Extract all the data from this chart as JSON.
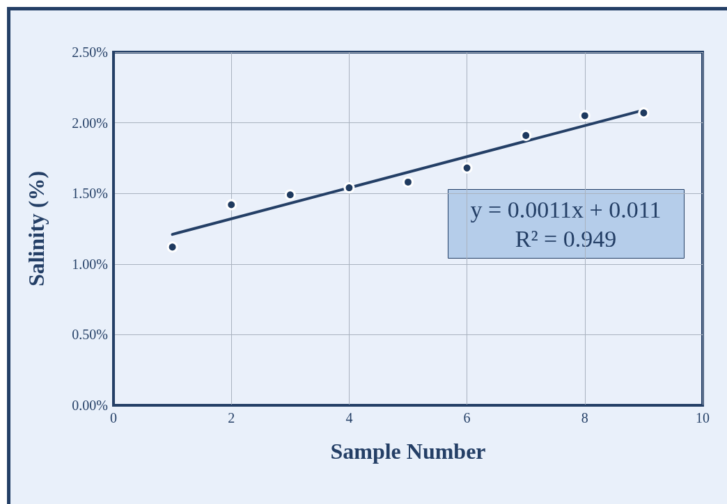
{
  "chart_data": {
    "type": "scatter",
    "xlabel": "Sample Number",
    "ylabel": "Salinity (%)",
    "x": [
      1,
      2,
      3,
      4,
      5,
      6,
      7,
      8,
      9
    ],
    "series": [
      {
        "color": "#1f3a5f",
        "values": [
          0.0112,
          0.0142,
          0.0149,
          0.0154,
          0.0158,
          0.0168,
          0.0191,
          0.0205,
          0.0207
        ]
      },
      {
        "type": "line",
        "color": "#243f66",
        "x": [
          1,
          9
        ],
        "values": [
          0.0121,
          0.0209
        ],
        "marker": "none",
        "line_style": "solid"
      }
    ],
    "xlim": [
      0,
      10
    ],
    "xticks": [
      0,
      2,
      4,
      6,
      8,
      10
    ],
    "ylim": [
      0,
      0.025
    ],
    "yticks": [
      {
        "value": 0,
        "label": "0.00%"
      },
      {
        "value": 0.005,
        "label": "0.50%"
      },
      {
        "value": 0.01,
        "label": "1.00%"
      },
      {
        "value": 0.015,
        "label": "1.50%"
      },
      {
        "value": 0.02,
        "label": "2.00%"
      },
      {
        "value": 0.025,
        "label": "2.50%"
      }
    ],
    "grid": true,
    "marker": "circle",
    "annotations": [
      "y = 0.0011x + 0.011",
      "R² = 0.949"
    ]
  }
}
